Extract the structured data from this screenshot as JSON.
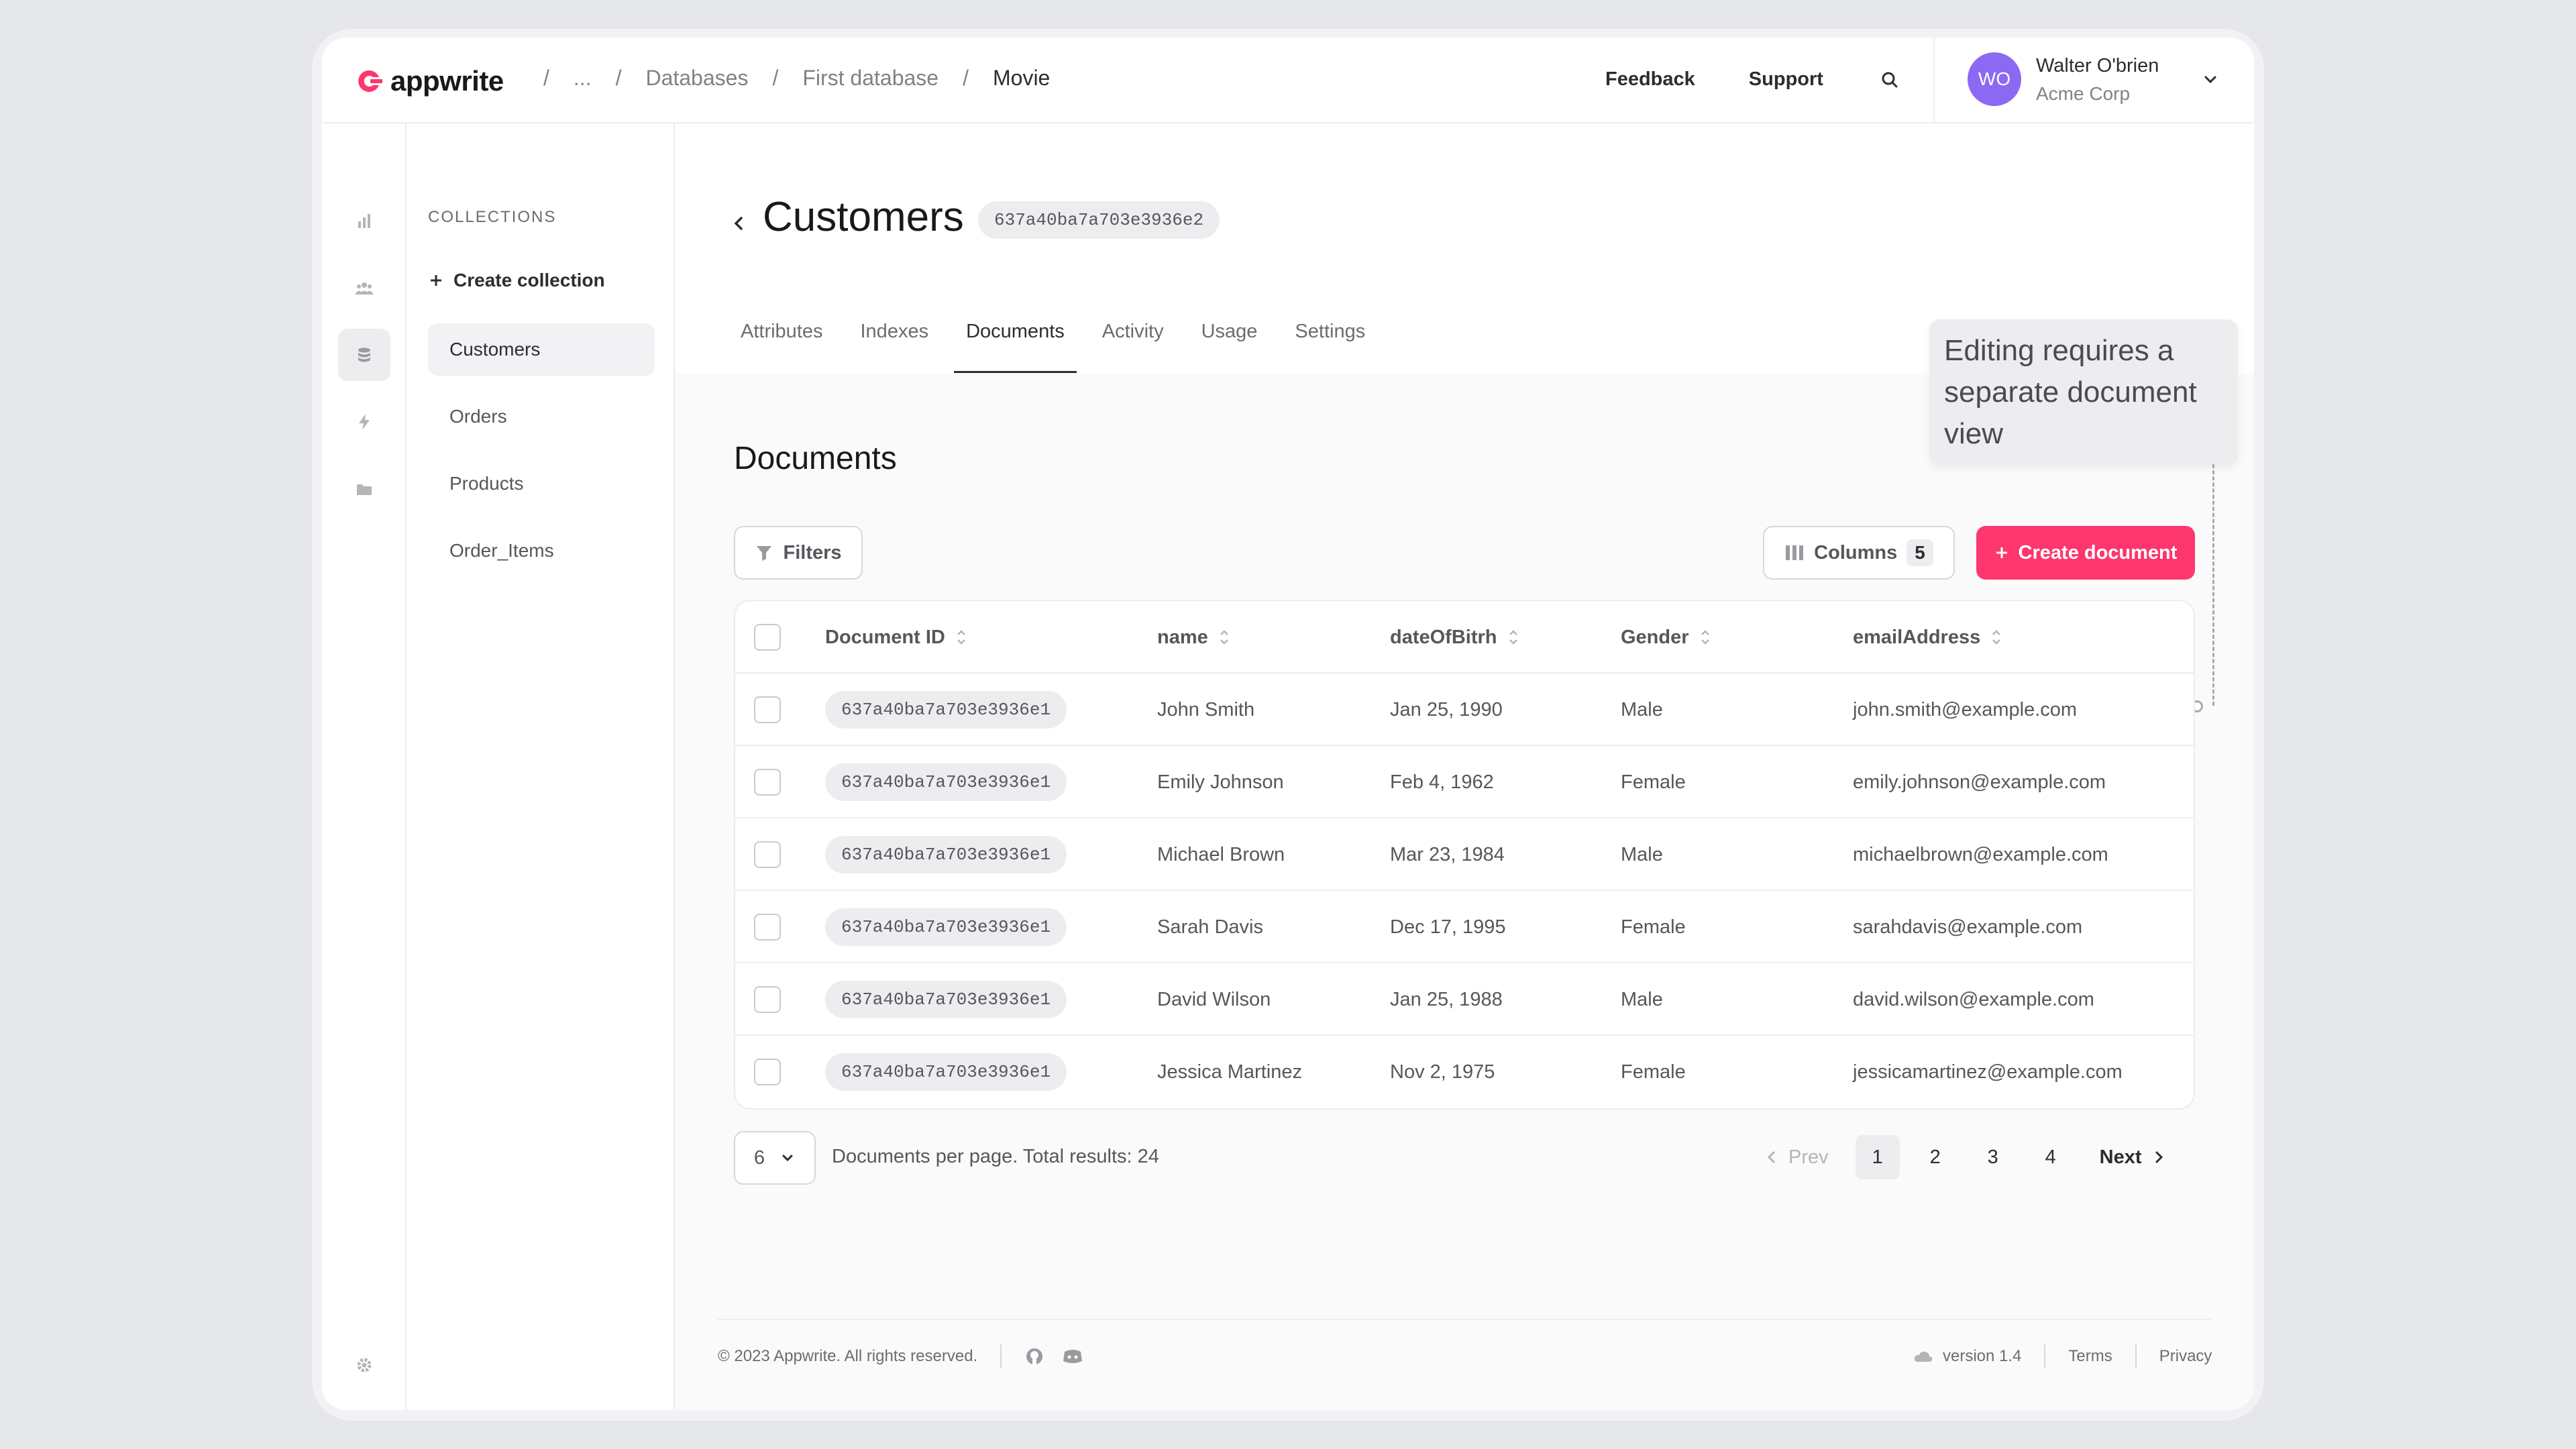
{
  "header": {
    "logo_text": "appwrite",
    "breadcrumbs": [
      "/",
      "...",
      "/",
      "Databases",
      "/",
      "First database",
      "/",
      "Movie"
    ],
    "links": [
      "Feedback",
      "Support"
    ],
    "user": {
      "initials": "WO",
      "name": "Walter O'brien",
      "org": "Acme Corp"
    },
    "brand_color": "#fd366e",
    "avatar_color": "#8b69f2"
  },
  "rail": {
    "icons": [
      "analytics-icon",
      "users-icon",
      "database-icon",
      "functions-icon",
      "storage-icon",
      "settings-icon"
    ],
    "active": "database-icon"
  },
  "sidebar": {
    "title": "COLLECTIONS",
    "create_label": "Create collection",
    "items": [
      "Customers",
      "Orders",
      "Products",
      "Order_Items"
    ],
    "active": "Customers"
  },
  "page": {
    "title": "Customers",
    "id": "637a40ba7a703e3936e2",
    "tabs": [
      "Attributes",
      "Indexes",
      "Documents",
      "Activity",
      "Usage",
      "Settings"
    ],
    "active_tab": "Documents"
  },
  "tooltip": "Editing requires a separate document view",
  "documents": {
    "heading": "Documents",
    "filters_label": "Filters",
    "columns_label": "Columns",
    "columns_count": "5",
    "create_label": "Create document",
    "headers": [
      "Document ID",
      "name",
      "dateOfBitrh",
      "Gender",
      "emailAddress"
    ],
    "rows": [
      {
        "id": "637a40ba7a703e3936e1",
        "name": "John Smith",
        "dob": "Jan 25, 1990",
        "gender": "Male",
        "email": "john.smith@example.com"
      },
      {
        "id": "637a40ba7a703e3936e1",
        "name": "Emily Johnson",
        "dob": "Feb 4, 1962",
        "gender": "Female",
        "email": "emily.johnson@example.com"
      },
      {
        "id": "637a40ba7a703e3936e1",
        "name": "Michael Brown",
        "dob": "Mar 23, 1984",
        "gender": "Male",
        "email": "michaelbrown@example.com"
      },
      {
        "id": "637a40ba7a703e3936e1",
        "name": "Sarah Davis",
        "dob": "Dec 17, 1995",
        "gender": "Female",
        "email": "sarahdavis@example.com"
      },
      {
        "id": "637a40ba7a703e3936e1",
        "name": "David Wilson",
        "dob": "Jan 25, 1988",
        "gender": "Male",
        "email": "david.wilson@example.com"
      },
      {
        "id": "637a40ba7a703e3936e1",
        "name": "Jessica Martinez",
        "dob": "Nov 2, 1975",
        "gender": "Female",
        "email": "jessicamartinez@example.com"
      }
    ]
  },
  "pagination": {
    "per_page": "6",
    "total_text": "Documents per page. Total results: 24",
    "prev": "Prev",
    "next": "Next",
    "pages": [
      "1",
      "2",
      "3",
      "4"
    ],
    "current": "1"
  },
  "footer": {
    "copyright": "© 2023 Appwrite. All rights reserved.",
    "version": "version 1.4",
    "terms": "Terms",
    "privacy": "Privacy"
  }
}
